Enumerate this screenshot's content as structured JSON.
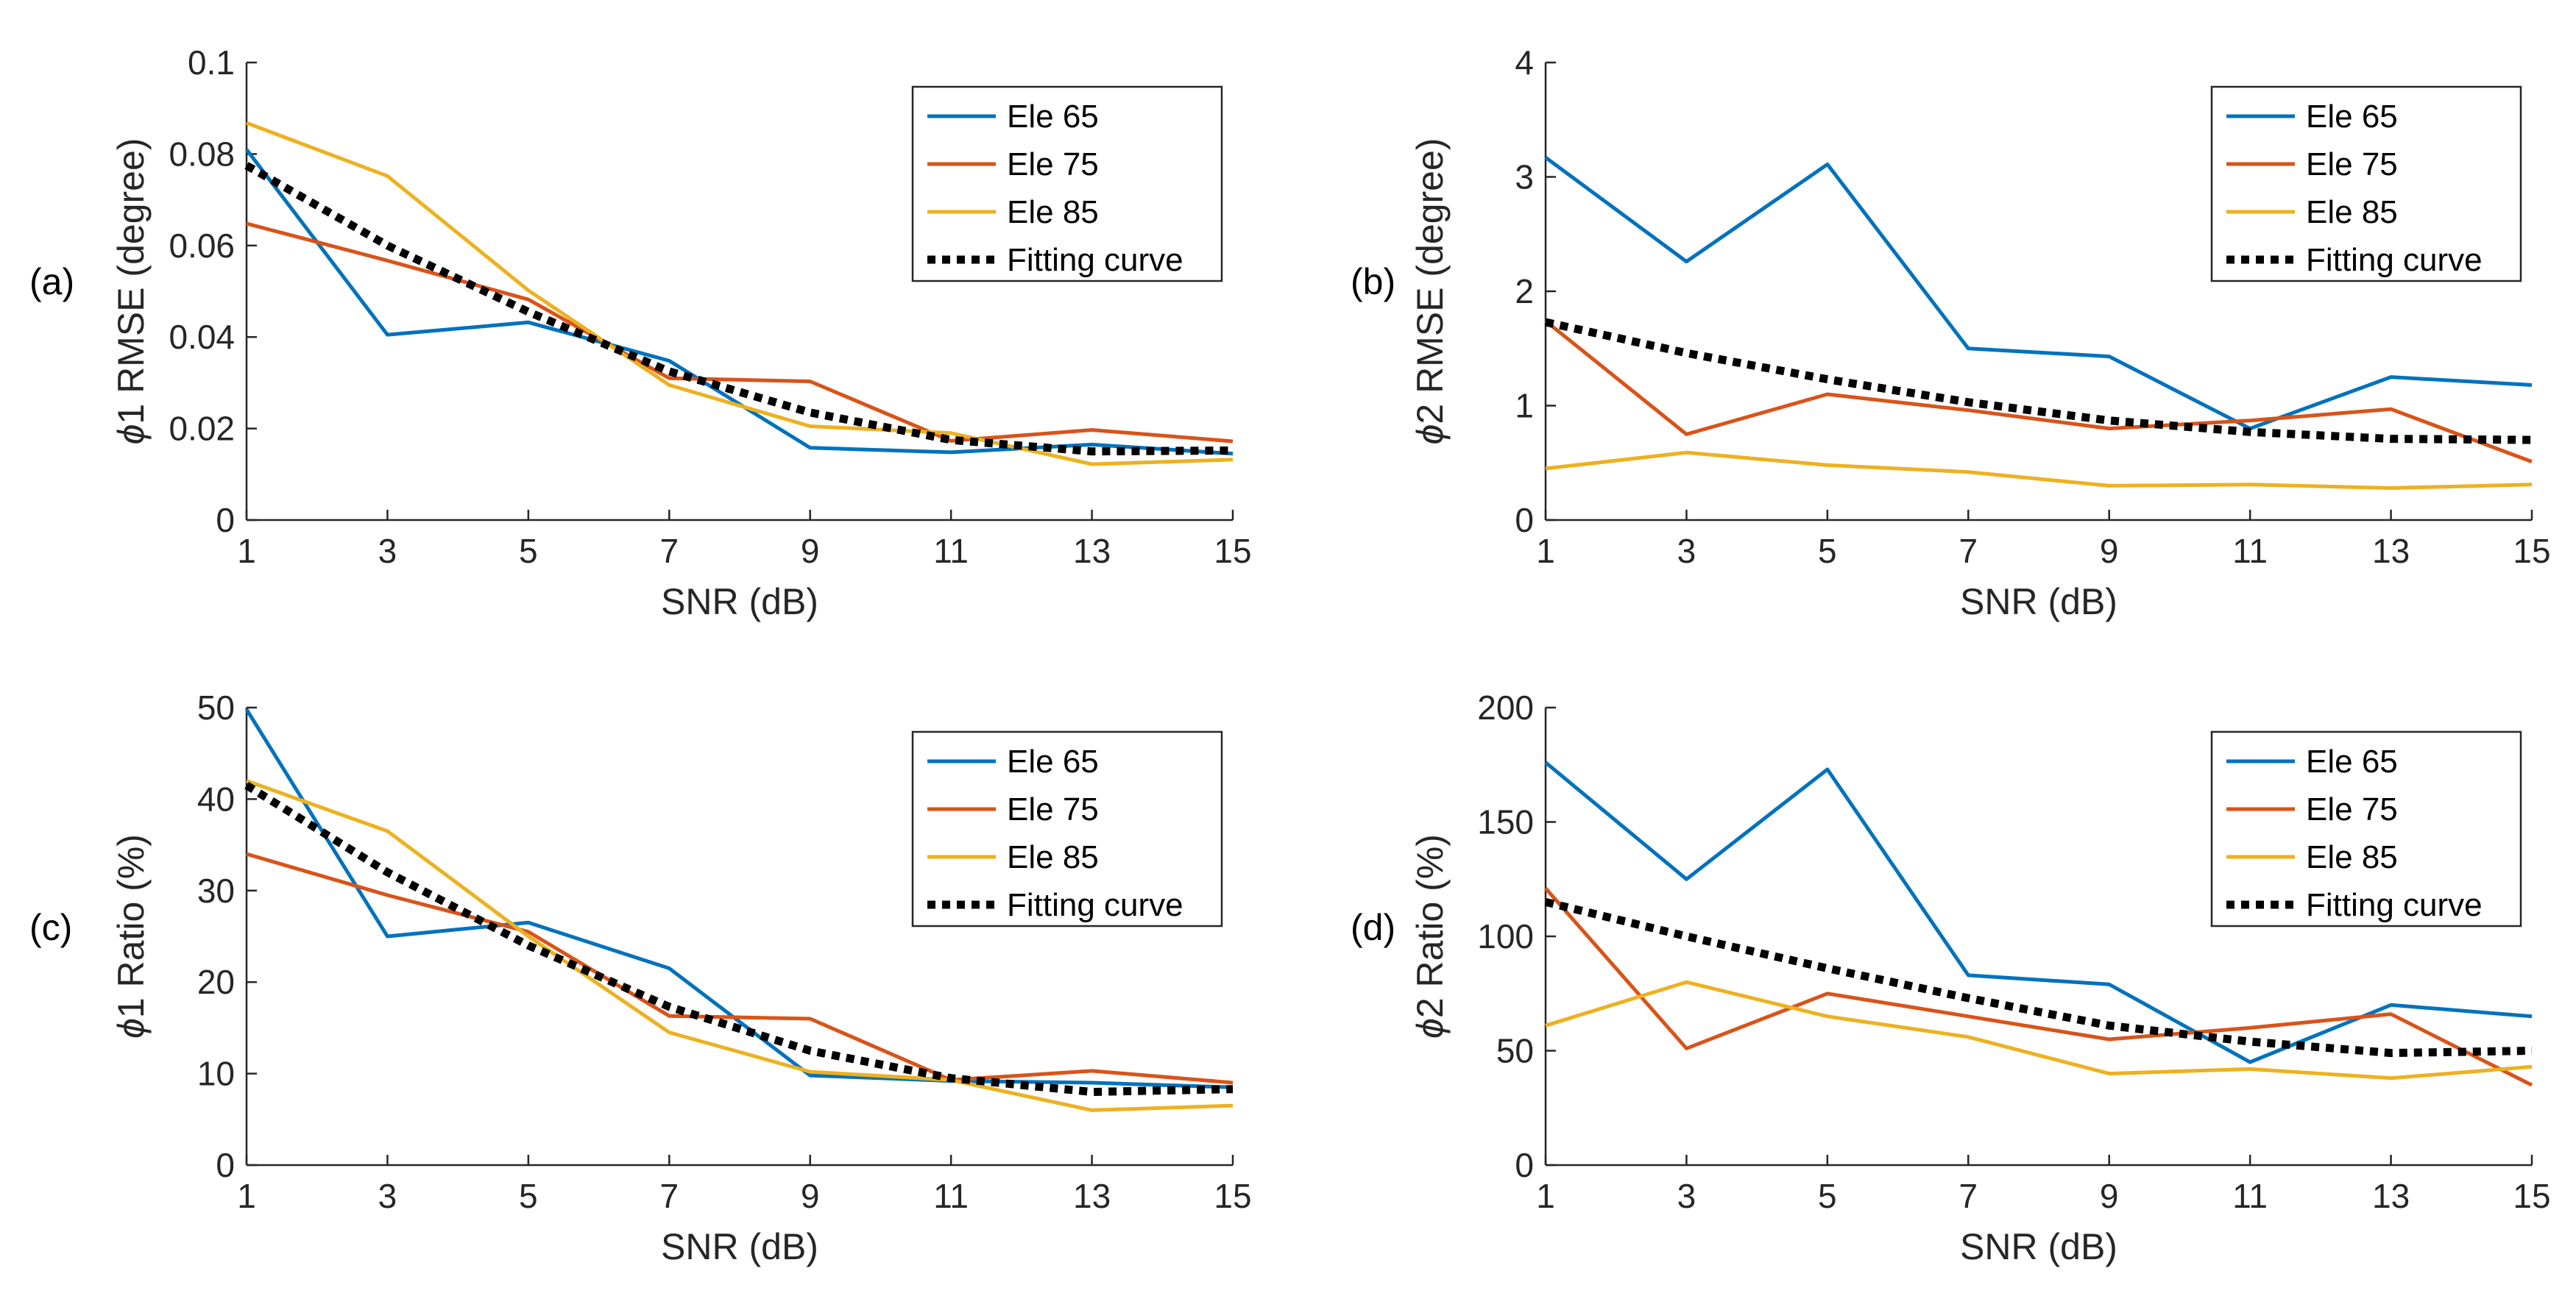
{
  "chart_data": [
    {
      "type": "line",
      "panel_label": "(a)",
      "title": "",
      "xlabel": "SNR (dB)",
      "ylabel_symbol": "ϕ",
      "ylabel": "1 RMSE (degree)",
      "xlim": [
        1,
        15
      ],
      "ylim": [
        0,
        0.1
      ],
      "x": [
        1,
        3,
        5,
        7,
        9,
        11,
        13,
        15
      ],
      "xticks": [
        "1",
        "3",
        "5",
        "7",
        "9",
        "11",
        "13",
        "15"
      ],
      "yticks": [
        0,
        0.02,
        0.04,
        0.06,
        0.08,
        0.1
      ],
      "ytick_labels": [
        "0",
        "0.02",
        "0.04",
        "0.06",
        "0.08",
        "0.1"
      ],
      "legend_position": "top-right",
      "series": [
        {
          "name": "Ele 65",
          "color": "#0072BD",
          "style": "solid",
          "values": [
            0.081,
            0.0405,
            0.0432,
            0.0348,
            0.0158,
            0.0148,
            0.0165,
            0.0145
          ]
        },
        {
          "name": "Ele 75",
          "color": "#D95319",
          "style": "solid",
          "values": [
            0.0648,
            0.0567,
            0.0482,
            0.031,
            0.0303,
            0.0173,
            0.0197,
            0.0172
          ]
        },
        {
          "name": "Ele 85",
          "color": "#EDB120",
          "style": "solid",
          "values": [
            0.0868,
            0.0752,
            0.0502,
            0.0295,
            0.0205,
            0.019,
            0.0122,
            0.0132
          ]
        },
        {
          "name": "Fitting curve",
          "color": "#000000",
          "style": "dotted",
          "values": [
            0.0775,
            0.06,
            0.0455,
            0.0325,
            0.0235,
            0.0175,
            0.015,
            0.0152
          ]
        }
      ]
    },
    {
      "type": "line",
      "panel_label": "(b)",
      "title": "",
      "xlabel": "SNR (dB)",
      "ylabel_symbol": "ϕ",
      "ylabel": "2 RMSE (degree)",
      "xlim": [
        1,
        15
      ],
      "ylim": [
        0,
        4
      ],
      "x": [
        1,
        3,
        5,
        7,
        9,
        11,
        13,
        15
      ],
      "xticks": [
        "1",
        "3",
        "5",
        "7",
        "9",
        "11",
        "13",
        "15"
      ],
      "yticks": [
        0,
        1,
        2,
        3,
        4
      ],
      "ytick_labels": [
        "0",
        "1",
        "2",
        "3",
        "4"
      ],
      "legend_position": "top-right",
      "series": [
        {
          "name": "Ele 65",
          "color": "#0072BD",
          "style": "solid",
          "values": [
            3.17,
            2.26,
            3.11,
            1.5,
            1.43,
            0.8,
            1.25,
            1.18
          ]
        },
        {
          "name": "Ele 75",
          "color": "#D95319",
          "style": "solid",
          "values": [
            1.74,
            0.75,
            1.1,
            0.96,
            0.8,
            0.87,
            0.97,
            0.51
          ]
        },
        {
          "name": "Ele 85",
          "color": "#EDB120",
          "style": "solid",
          "values": [
            0.45,
            0.59,
            0.48,
            0.42,
            0.3,
            0.31,
            0.28,
            0.31
          ]
        },
        {
          "name": "Fitting curve",
          "color": "#000000",
          "style": "dotted",
          "values": [
            1.73,
            1.46,
            1.23,
            1.03,
            0.87,
            0.77,
            0.71,
            0.7
          ]
        }
      ]
    },
    {
      "type": "line",
      "panel_label": "(c)",
      "title": "",
      "xlabel": "SNR (dB)",
      "ylabel_symbol": "ϕ",
      "ylabel": "1 Ratio (%)",
      "xlim": [
        1,
        15
      ],
      "ylim": [
        0,
        50
      ],
      "x": [
        1,
        3,
        5,
        7,
        9,
        11,
        13,
        15
      ],
      "xticks": [
        "1",
        "3",
        "5",
        "7",
        "9",
        "11",
        "13",
        "15"
      ],
      "yticks": [
        0,
        10,
        20,
        30,
        40,
        50
      ],
      "ytick_labels": [
        "0",
        "10",
        "20",
        "30",
        "40",
        "50"
      ],
      "legend_position": "top-right",
      "series": [
        {
          "name": "Ele 65",
          "color": "#0072BD",
          "style": "solid",
          "values": [
            49.8,
            25.0,
            26.5,
            21.5,
            9.8,
            9.2,
            9.0,
            8.5
          ]
        },
        {
          "name": "Ele 75",
          "color": "#D95319",
          "style": "solid",
          "values": [
            34.0,
            29.5,
            25.5,
            16.3,
            16.0,
            9.3,
            10.3,
            9.0
          ]
        },
        {
          "name": "Ele 85",
          "color": "#EDB120",
          "style": "solid",
          "values": [
            42.0,
            36.5,
            25.0,
            14.5,
            10.2,
            9.3,
            6.0,
            6.5
          ]
        },
        {
          "name": "Fitting curve",
          "color": "#000000",
          "style": "dotted",
          "values": [
            41.5,
            32.0,
            24.0,
            17.3,
            12.5,
            9.5,
            8.0,
            8.3
          ]
        }
      ]
    },
    {
      "type": "line",
      "panel_label": "(d)",
      "title": "",
      "xlabel": "SNR (dB)",
      "ylabel_symbol": "ϕ",
      "ylabel": "2 Ratio (%)",
      "xlim": [
        1,
        15
      ],
      "ylim": [
        0,
        200
      ],
      "x": [
        1,
        3,
        5,
        7,
        9,
        11,
        13,
        15
      ],
      "xticks": [
        "1",
        "3",
        "5",
        "7",
        "9",
        "11",
        "13",
        "15"
      ],
      "yticks": [
        0,
        50,
        100,
        150,
        200
      ],
      "ytick_labels": [
        "0",
        "50",
        "100",
        "150",
        "200"
      ],
      "legend_position": "top-right",
      "series": [
        {
          "name": "Ele 65",
          "color": "#0072BD",
          "style": "solid",
          "values": [
            176,
            125,
            173,
            83,
            79,
            45,
            70,
            65
          ]
        },
        {
          "name": "Ele 75",
          "color": "#D95319",
          "style": "solid",
          "values": [
            121,
            51,
            75,
            65,
            55,
            60,
            66,
            35
          ]
        },
        {
          "name": "Ele 85",
          "color": "#EDB120",
          "style": "solid",
          "values": [
            61,
            80,
            65,
            56,
            40,
            42,
            38,
            43
          ]
        },
        {
          "name": "Fitting curve",
          "color": "#000000",
          "style": "dotted",
          "values": [
            115,
            100,
            86,
            73,
            61,
            54,
            49,
            50
          ]
        }
      ]
    }
  ]
}
